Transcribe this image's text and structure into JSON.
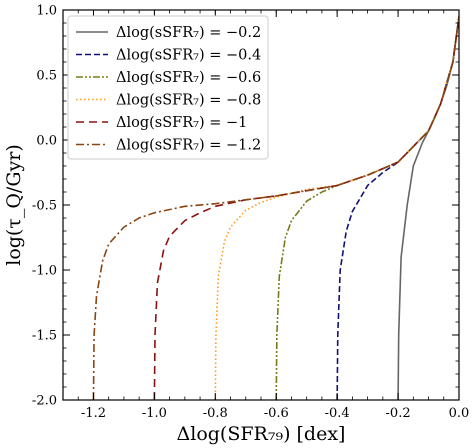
{
  "chart_data": {
    "type": "line",
    "xlabel": "Δlog(SFR₇₉) [dex]",
    "ylabel": "log(τ_Q/Gyr)",
    "xlim": [
      -1.3,
      0.0
    ],
    "ylim": [
      -2.0,
      1.0
    ],
    "x_ticks": [
      -1.2,
      -1.0,
      -0.8,
      -0.6,
      -0.4,
      -0.2,
      0.0
    ],
    "x_tick_labels": [
      "-1.2",
      "-1.0",
      "-0.8",
      "-0.6",
      "-0.4",
      "-0.2",
      "0.0"
    ],
    "y_ticks": [
      -2.0,
      -1.5,
      -1.0,
      -0.5,
      0.0,
      0.5,
      1.0
    ],
    "y_tick_labels": [
      "-2.0",
      "-1.5",
      "-1.0",
      "-0.5",
      "0.0",
      "0.5",
      "1.0"
    ],
    "legend_position": "upper-left",
    "grid": false,
    "series": [
      {
        "name": "Δlog(sSFR₇) = −0.2",
        "color": "#666666",
        "dash": "solid",
        "x": [
          -0.2,
          -0.198,
          -0.19,
          -0.17,
          -0.15,
          -0.12,
          -0.1,
          -0.08,
          -0.06,
          -0.04,
          -0.02,
          0.0
        ],
        "y": [
          -2.0,
          -1.5,
          -0.9,
          -0.5,
          -0.2,
          -0.02,
          0.07,
          0.17,
          0.28,
          0.42,
          0.6,
          0.95
        ]
      },
      {
        "name": "Δlog(sSFR₇) = −0.4",
        "color": "#10107a",
        "dash": "6,3",
        "x": [
          -0.4,
          -0.398,
          -0.39,
          -0.37,
          -0.35,
          -0.3,
          -0.25,
          -0.2,
          -0.15,
          -0.1,
          -0.06,
          -0.02,
          0.0
        ],
        "y": [
          -2.0,
          -1.5,
          -1.0,
          -0.7,
          -0.55,
          -0.35,
          -0.25,
          -0.17,
          -0.05,
          0.07,
          0.28,
          0.6,
          0.95
        ]
      },
      {
        "name": "Δlog(sSFR₇) = −0.6",
        "color": "#7a7a18",
        "dash": "7,2,2,2,2,2",
        "x": [
          -0.6,
          -0.598,
          -0.59,
          -0.57,
          -0.55,
          -0.5,
          -0.45,
          -0.4,
          -0.3,
          -0.2,
          -0.15,
          -0.1,
          -0.06,
          -0.02,
          0.0
        ],
        "y": [
          -2.0,
          -1.5,
          -1.05,
          -0.75,
          -0.62,
          -0.47,
          -0.4,
          -0.35,
          -0.27,
          -0.17,
          -0.05,
          0.07,
          0.28,
          0.6,
          0.95
        ]
      },
      {
        "name": "Δlog(sSFR₇) = −0.8",
        "color": "#ff9a1a",
        "dash": "1.5,2.5",
        "x": [
          -0.8,
          -0.798,
          -0.79,
          -0.77,
          -0.75,
          -0.7,
          -0.65,
          -0.6,
          -0.5,
          -0.4,
          -0.3,
          -0.2,
          -0.15,
          -0.1,
          -0.06,
          -0.02,
          0.0
        ],
        "y": [
          -2.0,
          -1.5,
          -1.05,
          -0.78,
          -0.67,
          -0.54,
          -0.48,
          -0.44,
          -0.38,
          -0.35,
          -0.27,
          -0.17,
          -0.05,
          0.07,
          0.28,
          0.6,
          0.95
        ]
      },
      {
        "name": "Δlog(sSFR₇) = −1",
        "color": "#8b1010",
        "dash": "8,5",
        "x": [
          -1.0,
          -0.998,
          -0.99,
          -0.97,
          -0.95,
          -0.9,
          -0.85,
          -0.8,
          -0.7,
          -0.6,
          -0.5,
          -0.4,
          -0.3,
          -0.2,
          -0.15,
          -0.1,
          -0.06,
          -0.02,
          0.0
        ],
        "y": [
          -2.0,
          -1.5,
          -1.1,
          -0.85,
          -0.74,
          -0.62,
          -0.56,
          -0.51,
          -0.46,
          -0.43,
          -0.39,
          -0.35,
          -0.27,
          -0.17,
          -0.05,
          0.07,
          0.28,
          0.6,
          0.95
        ]
      },
      {
        "name": "Δlog(sSFR₇) = −1.2",
        "color": "#8b4513",
        "dash": "8,3,2,3",
        "x": [
          -1.2,
          -1.198,
          -1.19,
          -1.17,
          -1.15,
          -1.1,
          -1.05,
          -1.0,
          -0.9,
          -0.8,
          -0.7,
          -0.6,
          -0.5,
          -0.4,
          -0.3,
          -0.2,
          -0.15,
          -0.1,
          -0.06,
          -0.02,
          0.0
        ],
        "y": [
          -2.0,
          -1.5,
          -1.2,
          -0.93,
          -0.8,
          -0.67,
          -0.6,
          -0.56,
          -0.51,
          -0.49,
          -0.46,
          -0.43,
          -0.39,
          -0.35,
          -0.27,
          -0.17,
          -0.05,
          0.07,
          0.28,
          0.6,
          0.95
        ]
      }
    ]
  }
}
